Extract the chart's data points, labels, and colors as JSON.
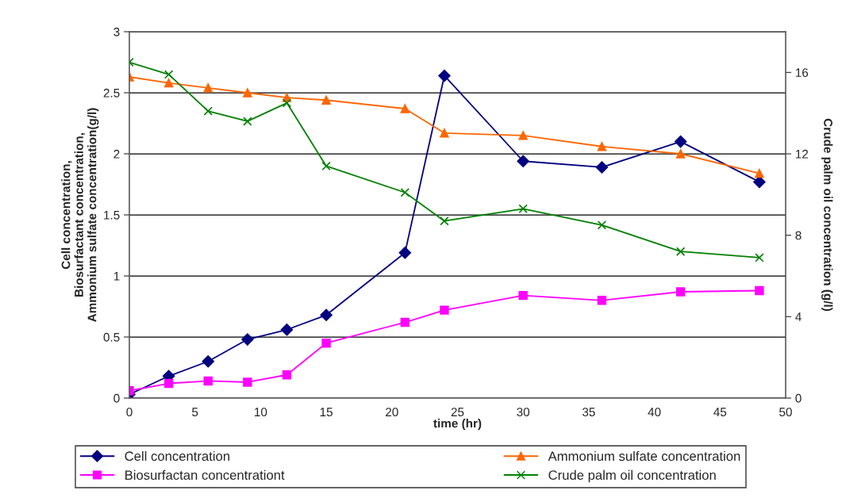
{
  "chart_data": {
    "type": "line",
    "xlabel": "time (hr)",
    "ylabel": "Cell concentration,\nBiosurfactant concentration,\nAmmonium sulfate concentration(g/l)",
    "y2label": "Crude palm oil concentration (g/l)",
    "x": [
      0,
      3,
      6,
      9,
      12,
      15,
      21,
      24,
      30,
      36,
      42,
      48
    ],
    "xlim": [
      0,
      50
    ],
    "xticks": [
      0,
      5,
      10,
      15,
      20,
      25,
      30,
      35,
      40,
      45,
      50
    ],
    "ylim": [
      0,
      3
    ],
    "yticks": [
      0,
      0.5,
      1,
      1.5,
      2,
      2.5,
      3
    ],
    "y2lim": [
      0,
      18
    ],
    "y2ticks": [
      0,
      4,
      8,
      12,
      16
    ],
    "grid": "y",
    "legend": "bottom",
    "series": [
      {
        "name": "Cell concentration",
        "color": "#000080",
        "marker": "diamond",
        "values": [
          0.03,
          0.18,
          0.3,
          0.48,
          0.56,
          0.68,
          1.19,
          2.64,
          1.94,
          1.89,
          2.1,
          1.77
        ]
      },
      {
        "name": "Biosurfactan concentrationt",
        "color": "#ff00ff",
        "marker": "square",
        "values": [
          0.06,
          0.12,
          0.14,
          0.13,
          0.19,
          0.45,
          0.62,
          0.72,
          0.84,
          0.8,
          0.87,
          0.88
        ]
      },
      {
        "name": "Ammonium sulfate concentration",
        "color": "#ff6600",
        "marker": "triangle",
        "values": [
          2.63,
          2.58,
          2.54,
          2.5,
          2.46,
          2.44,
          2.37,
          2.17,
          2.15,
          2.06,
          2.0,
          1.84
        ]
      },
      {
        "name": "Crude palm oil concentration",
        "color": "#008000",
        "marker": "cross",
        "axis": "y2",
        "values": [
          16.5,
          15.9,
          14.1,
          13.6,
          14.5,
          11.4,
          10.1,
          8.7,
          9.3,
          8.5,
          7.2,
          6.9
        ]
      }
    ]
  }
}
